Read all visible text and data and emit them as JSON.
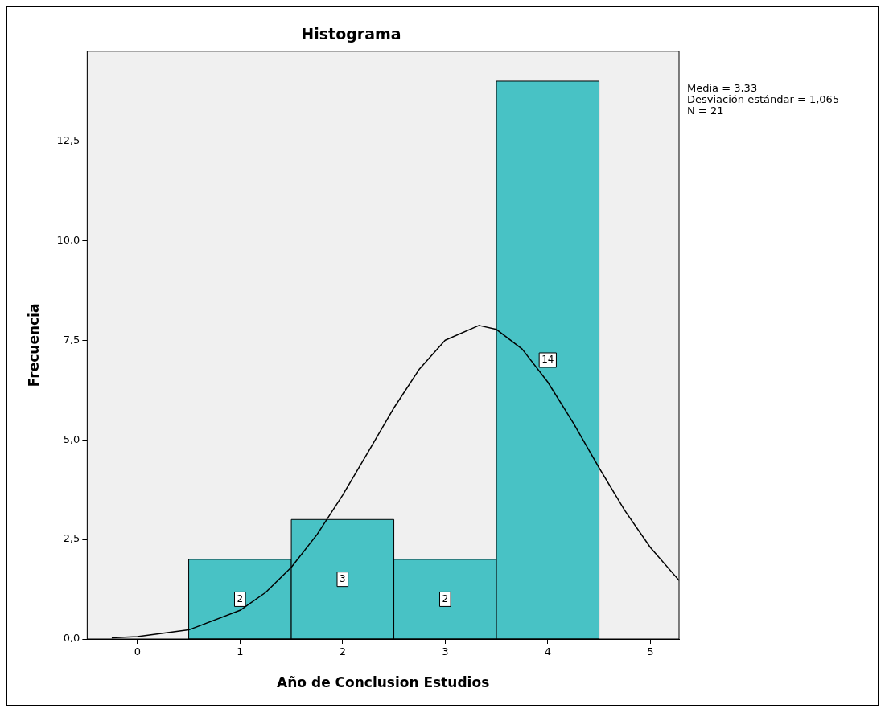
{
  "chart_data": {
    "type": "histogram",
    "title": "Histograma",
    "xlabel": "Año de Conclusion Estudios",
    "ylabel": "Frecuencia",
    "bins": [
      0.5,
      1.5,
      2.5,
      3.5,
      4.5
    ],
    "values": [
      2,
      3,
      2,
      14
    ],
    "color": "#48c2c5",
    "value_labels": [
      "2",
      "3",
      "2",
      "14"
    ],
    "series": [
      {
        "type": "line",
        "color": "#000000",
        "x": [
          -0.25,
          0,
          0.5,
          1,
          1.25,
          1.5,
          1.75,
          2,
          2.25,
          2.5,
          2.75,
          3,
          3.33,
          3.5,
          3.75,
          4,
          4.25,
          4.5,
          4.75,
          5,
          5.28
        ],
        "values": [
          0.03,
          0.06,
          0.23,
          0.72,
          1.17,
          1.8,
          2.62,
          3.61,
          4.7,
          5.8,
          6.78,
          7.5,
          7.87,
          7.77,
          7.28,
          6.45,
          5.42,
          4.3,
          3.23,
          2.3,
          1.47
        ]
      }
    ],
    "xlim": [
      -0.49,
      5.28
    ],
    "xticks": [
      0,
      1,
      2,
      3,
      4,
      5
    ],
    "ylim": [
      0,
      14.75
    ],
    "yticks": [
      {
        "value": 0,
        "label": "0,0"
      },
      {
        "value": 2.5,
        "label": "2,5"
      },
      {
        "value": 5,
        "label": "5,0"
      },
      {
        "value": 7.5,
        "label": "7,5"
      },
      {
        "value": 10,
        "label": "10,0"
      },
      {
        "value": 12.5,
        "label": "12,5"
      }
    ],
    "grid": false,
    "legend": false,
    "annotations": [
      "Media = 3,33",
      "Desviación estándar = 1,065",
      "N = 21"
    ]
  }
}
